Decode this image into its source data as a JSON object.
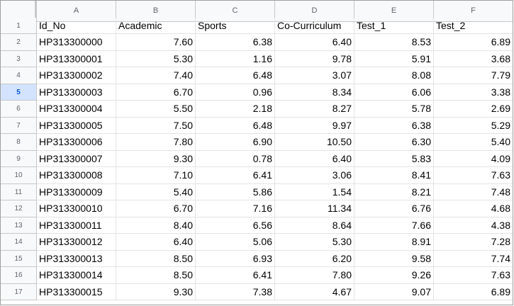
{
  "columns": [
    "A",
    "B",
    "C",
    "D",
    "E",
    "F"
  ],
  "headers": [
    "Id_No",
    "Academic",
    "Sports",
    "Co-Curriculum",
    "Test_1",
    "Test_2"
  ],
  "selected_row": "5",
  "rows": [
    {
      "n": "2",
      "cells": [
        "HP313300000",
        "7.60",
        "6.38",
        "6.40",
        "8.53",
        "6.89"
      ]
    },
    {
      "n": "3",
      "cells": [
        "HP313300001",
        "5.30",
        "1.16",
        "9.78",
        "5.91",
        "3.68"
      ]
    },
    {
      "n": "4",
      "cells": [
        "HP313300002",
        "7.40",
        "6.48",
        "3.07",
        "8.08",
        "7.79"
      ]
    },
    {
      "n": "5",
      "cells": [
        "HP313300003",
        "6.70",
        "0.96",
        "8.34",
        "6.06",
        "3.38"
      ]
    },
    {
      "n": "6",
      "cells": [
        "HP313300004",
        "5.50",
        "2.18",
        "8.27",
        "5.78",
        "2.69"
      ]
    },
    {
      "n": "7",
      "cells": [
        "HP313300005",
        "7.50",
        "6.48",
        "9.97",
        "6.38",
        "5.29"
      ]
    },
    {
      "n": "8",
      "cells": [
        "HP313300006",
        "7.80",
        "6.90",
        "10.50",
        "6.30",
        "5.40"
      ]
    },
    {
      "n": "9",
      "cells": [
        "HP313300007",
        "9.30",
        "0.78",
        "6.40",
        "5.83",
        "4.09"
      ]
    },
    {
      "n": "10",
      "cells": [
        "HP313300008",
        "7.10",
        "6.41",
        "3.06",
        "8.41",
        "7.63"
      ]
    },
    {
      "n": "11",
      "cells": [
        "HP313300009",
        "5.40",
        "5.86",
        "1.54",
        "8.21",
        "7.48"
      ]
    },
    {
      "n": "12",
      "cells": [
        "HP313300010",
        "6.70",
        "7.16",
        "11.34",
        "6.76",
        "4.68"
      ]
    },
    {
      "n": "13",
      "cells": [
        "HP313300011",
        "8.40",
        "6.56",
        "8.64",
        "7.66",
        "4.38"
      ]
    },
    {
      "n": "14",
      "cells": [
        "HP313300012",
        "6.40",
        "5.06",
        "5.30",
        "8.91",
        "7.28"
      ]
    },
    {
      "n": "15",
      "cells": [
        "HP313300013",
        "8.50",
        "6.93",
        "6.20",
        "9.58",
        "7.74"
      ]
    },
    {
      "n": "16",
      "cells": [
        "HP313300014",
        "8.50",
        "6.41",
        "7.80",
        "9.26",
        "7.63"
      ]
    },
    {
      "n": "17",
      "cells": [
        "HP313300015",
        "9.30",
        "7.38",
        "4.67",
        "9.07",
        "6.89"
      ]
    }
  ]
}
